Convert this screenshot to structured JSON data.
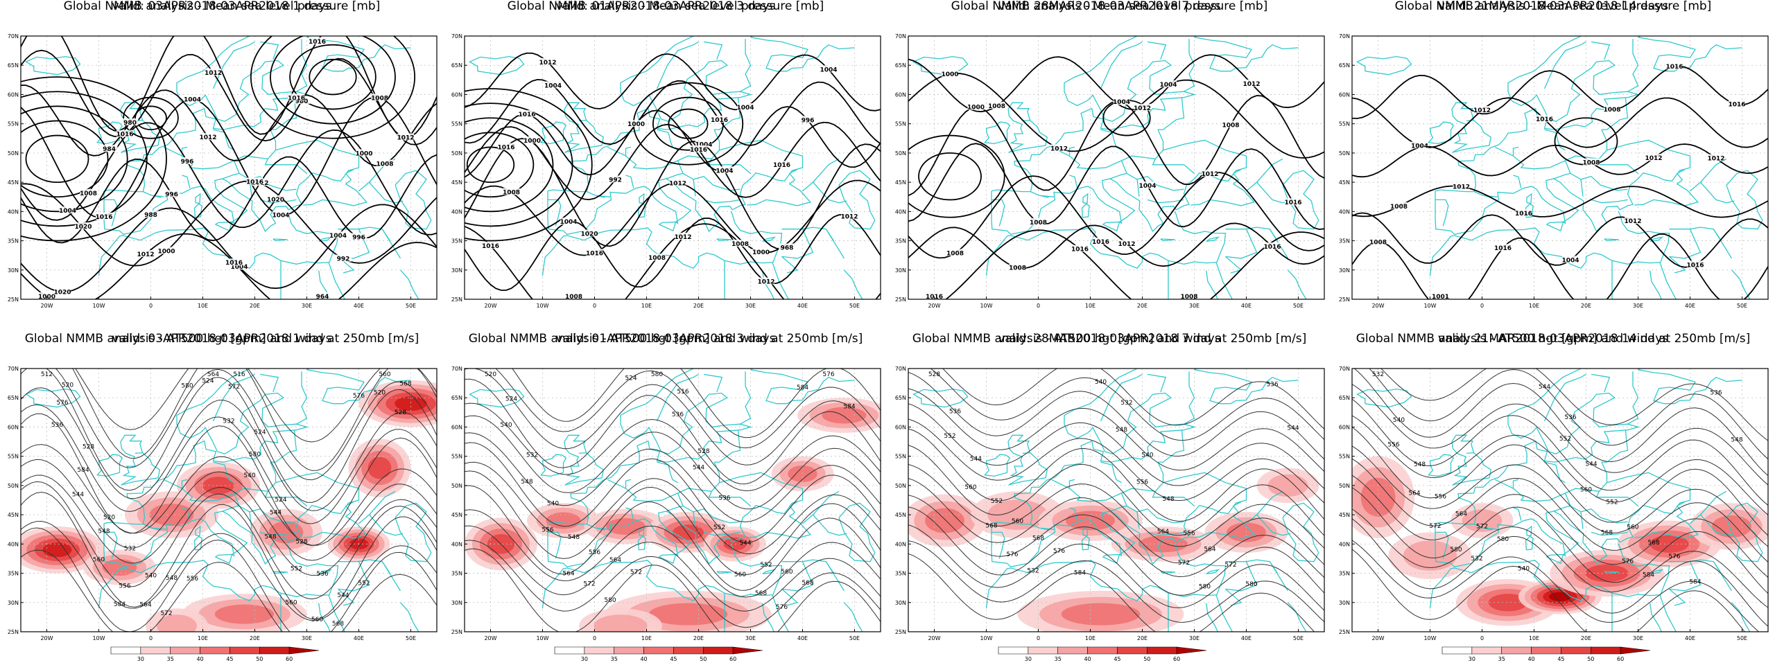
{
  "rows": [
    {
      "kind": "mslp",
      "title": "Global NMMB analysis - Mean sea level pressure [mb]",
      "panels": [
        {
          "valid": "valid: 03APR2018-03APR2018   1 days",
          "labels": [
            "1000",
            "1004",
            "1004",
            "1012",
            "1008",
            "1004",
            "984",
            "980",
            "980",
            "964",
            "988",
            "992",
            "996",
            "1000",
            "1004",
            "1008",
            "1012",
            "1012",
            "1016",
            "1020",
            "1016",
            "1020",
            "1020",
            "1016",
            "1016",
            "1016",
            "1016",
            "1012",
            "1004",
            "1000",
            "996",
            "996",
            "1008",
            "1012"
          ]
        },
        {
          "valid": "valid: 01APR2018-03APR2018   3 days",
          "labels": [
            "1016",
            "1012",
            "1008",
            "1004",
            "1000",
            "1004",
            "1004",
            "1004",
            "1008",
            "1012",
            "1016",
            "968",
            "992",
            "996",
            "1000",
            "1004",
            "1008",
            "1012",
            "1012",
            "1016",
            "1016",
            "1016",
            "1016",
            "1012",
            "1008",
            "1004",
            "1000",
            "1020",
            "1016"
          ]
        },
        {
          "valid": "valid: 28MAR2018-03APR2018   7 days",
          "labels": [
            "1016",
            "1012",
            "1008",
            "1004",
            "1000",
            "1004",
            "1008",
            "1008",
            "1008",
            "1012",
            "1008",
            "1008",
            "1012",
            "1012",
            "1016",
            "1016",
            "1016",
            "1016",
            "1004",
            "1000",
            "1012"
          ]
        },
        {
          "valid": "valid: 21MAR2018-03APR2018   14 days",
          "labels": [
            "1008",
            "1004",
            "1008",
            "1008",
            "1004",
            "1008",
            "1001",
            "1012",
            "1012",
            "1012",
            "1012",
            "1016",
            "1016",
            "1016",
            "1016",
            "1012",
            "1016",
            "1016"
          ]
        }
      ]
    },
    {
      "kind": "hgt",
      "title": "Global NMMB analysis - AT500 hgt [gpm] and wind at 250mb [m/s]",
      "panels": [
        {
          "valid": "valid: 03APR2018-03APR2018   1 days",
          "labels": [
            "512",
            "516",
            "520",
            "524",
            "528",
            "524",
            "520",
            "528",
            "532",
            "536",
            "540",
            "544",
            "548",
            "552",
            "556",
            "560",
            "564",
            "568",
            "572",
            "576",
            "580",
            "584",
            "544",
            "548",
            "552",
            "556",
            "560",
            "564",
            "568",
            "572",
            "576",
            "580",
            "520",
            "524",
            "528",
            "532",
            "536",
            "540",
            "544",
            "548",
            "560",
            "560",
            "584"
          ]
        },
        {
          "valid": "valid: 01APR2018-03APR2018   3 days",
          "labels": [
            "520",
            "516",
            "524",
            "528",
            "532",
            "536",
            "540",
            "544",
            "548",
            "552",
            "556",
            "560",
            "564",
            "568",
            "572",
            "576",
            "580",
            "584",
            "536",
            "540",
            "544",
            "548",
            "552",
            "556",
            "560",
            "564",
            "568",
            "572",
            "576",
            "580",
            "584",
            "524"
          ]
        },
        {
          "valid": "valid: 28MAR2018-03APR2018   7 days",
          "labels": [
            "528",
            "532",
            "536",
            "540",
            "544",
            "548",
            "552",
            "556",
            "560",
            "564",
            "568",
            "572",
            "576",
            "580",
            "584",
            "536",
            "540",
            "544",
            "548",
            "552",
            "556",
            "560",
            "564",
            "568",
            "572",
            "576",
            "580",
            "532"
          ]
        },
        {
          "valid": "valid: 21MAR2018-03APR2018   14 days",
          "labels": [
            "532",
            "536",
            "540",
            "544",
            "548",
            "552",
            "556",
            "560",
            "564",
            "568",
            "572",
            "576",
            "580",
            "584",
            "540",
            "536",
            "544",
            "548",
            "552",
            "556",
            "560",
            "564",
            "568",
            "572",
            "576",
            "580",
            "584",
            "532"
          ]
        }
      ]
    }
  ],
  "axes": {
    "lat_labels": [
      "70N",
      "65N",
      "60N",
      "55N",
      "50N",
      "45N",
      "40N",
      "35N",
      "30N",
      "25N"
    ],
    "lon_labels": [
      "20W",
      "10W",
      "0",
      "10E",
      "20E",
      "30E",
      "40E",
      "50E"
    ]
  },
  "colorbar": {
    "ticks": [
      "30",
      "35",
      "40",
      "45",
      "50",
      "60"
    ],
    "colors": [
      "#ffffff",
      "#fbd0d0",
      "#f6a3a3",
      "#f07272",
      "#e54545",
      "#d21b1b",
      "#b20000"
    ]
  },
  "colors": {
    "coast": "#2ec9cd",
    "grid": "#c0c0c0",
    "contour_mslp": "#000000",
    "contour_hgt": "#333333"
  }
}
